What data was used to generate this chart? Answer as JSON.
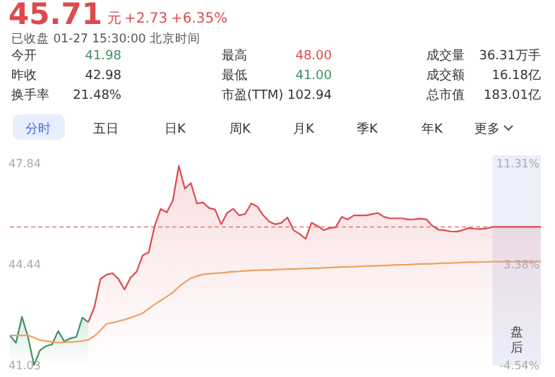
{
  "chart_data": {
    "type": "line",
    "title": "45.71",
    "annotations": [
      "元",
      "+2.73",
      "+6.35%",
      "已收盘 01-27 15:30:00 北京时间",
      "今开",
      "41.98",
      "最高",
      "48.00",
      "成交量",
      "36.31万手",
      "昨收",
      "42.98",
      "最低",
      "41.00",
      "成交额",
      "16.18亿",
      "换手率",
      "21.48%",
      "市盈(TTM)",
      "102.94",
      "总市值",
      "183.01亿",
      "分时",
      "五日",
      "日K",
      "周K",
      "月K",
      "季K",
      "年K",
      "更多",
      "盘后"
    ],
    "categories": [
      null,
      null,
      null,
      null,
      null,
      null,
      null,
      null,
      null,
      null,
      null,
      null,
      null,
      null,
      null,
      null,
      null,
      null,
      null,
      null,
      null,
      null,
      null,
      null,
      null,
      null,
      null,
      null,
      null,
      null,
      null,
      null,
      null,
      null,
      null,
      null,
      null,
      null,
      null,
      null,
      null,
      null,
      null,
      null,
      null,
      null,
      null,
      null,
      null,
      null,
      null,
      null,
      null,
      null,
      null,
      null,
      null,
      null,
      null,
      null,
      null,
      null,
      null,
      null,
      null,
      null,
      null,
      null,
      null,
      null,
      null,
      null,
      null,
      null,
      null,
      null,
      null,
      null,
      null,
      null,
      null,
      null,
      null,
      null,
      null,
      null,
      null,
      null,
      null
    ],
    "ylim": [
      41.03,
      47.84
    ],
    "yticks": [
      47.84,
      44.44,
      41.03
    ],
    "y2lim": [
      -4.54,
      11.31
    ],
    "y2ticks": [
      {
        "value": 11.31,
        "label": "11.31%"
      },
      {
        "value": 3.38,
        "label": "3.38%"
      },
      {
        "value": -4.54,
        "label": "-4.54%"
      }
    ],
    "tick_labels": "y",
    "grid": false,
    "ref_lines": [
      {
        "axis": "y",
        "value": 45.71,
        "color": "#e8767a",
        "line_style": "dashed"
      }
    ],
    "series": [
      {
        "type": "area",
        "color": "#3f8f66",
        "values": [
          42.05,
          41.8,
          42.68,
          42.0,
          41.05,
          41.55,
          41.69,
          41.75,
          42.2,
          41.85,
          41.95,
          42.0,
          42.65,
          42.5,
          null,
          null,
          null,
          null,
          null,
          null,
          null,
          null,
          null,
          null,
          null,
          null,
          null,
          null,
          null,
          null,
          null,
          null,
          null,
          null,
          null,
          null,
          null,
          null,
          null,
          null,
          null,
          null,
          null,
          null,
          null,
          null,
          null,
          null,
          null,
          null,
          null,
          null,
          null,
          null,
          null,
          null,
          null,
          null,
          null,
          null,
          null,
          null,
          null,
          null,
          null,
          null,
          null,
          null,
          null,
          null,
          null,
          null,
          null,
          null,
          null,
          null,
          null,
          null,
          null,
          null,
          null,
          null,
          null,
          null,
          null,
          null,
          null,
          null,
          null
        ]
      },
      {
        "type": "area",
        "color": "#dd4a50",
        "values": [
          null,
          null,
          null,
          null,
          null,
          null,
          null,
          null,
          null,
          null,
          null,
          null,
          null,
          42.5,
          43.0,
          43.95,
          44.1,
          44.15,
          43.95,
          43.6,
          44.0,
          44.2,
          44.75,
          44.85,
          45.75,
          46.32,
          46.2,
          46.6,
          47.77,
          47.0,
          47.19,
          46.5,
          46.54,
          46.35,
          46.3,
          45.8,
          46.18,
          46.32,
          46.1,
          46.15,
          46.5,
          46.4,
          46.1,
          45.89,
          45.8,
          45.85,
          46.03,
          45.6,
          45.48,
          45.31,
          45.85,
          45.74,
          45.6,
          45.67,
          45.7,
          46.05,
          45.96,
          46.1,
          46.1,
          46.1,
          46.14,
          46.18,
          46.05,
          46.0,
          46.0,
          46.0,
          45.96,
          45.97,
          45.99,
          45.97,
          45.75,
          45.62,
          45.6,
          45.56,
          45.55,
          45.6,
          45.67,
          45.65,
          45.64,
          45.66,
          45.71,
          45.71,
          45.71,
          45.71,
          45.71,
          45.71,
          45.71,
          45.71,
          45.71
        ]
      },
      {
        "color": "#f0a060",
        "values": [
          42.05,
          42.05,
          42.05,
          42.05,
          41.98,
          41.89,
          41.86,
          41.83,
          41.81,
          41.82,
          41.83,
          41.84,
          41.87,
          41.9,
          42.03,
          42.22,
          42.44,
          42.48,
          42.53,
          42.58,
          42.65,
          42.72,
          42.8,
          42.95,
          43.1,
          43.23,
          43.36,
          43.5,
          43.69,
          43.85,
          43.98,
          44.05,
          44.11,
          44.13,
          44.15,
          44.16,
          44.18,
          44.2,
          44.21,
          44.23,
          44.24,
          44.25,
          44.26,
          44.26,
          44.27,
          44.28,
          44.29,
          44.29,
          44.3,
          44.31,
          44.32,
          44.32,
          44.33,
          44.34,
          44.35,
          44.36,
          44.36,
          44.37,
          44.38,
          44.39,
          44.39,
          44.4,
          44.41,
          44.42,
          44.43,
          44.43,
          44.44,
          44.45,
          44.46,
          44.46,
          44.47,
          44.48,
          44.49,
          44.49,
          44.5,
          44.51,
          44.52,
          44.52,
          44.53,
          44.53,
          44.54,
          44.54,
          44.54,
          44.54,
          44.54,
          44.54,
          44.54,
          44.54,
          44.54
        ]
      }
    ]
  }
}
